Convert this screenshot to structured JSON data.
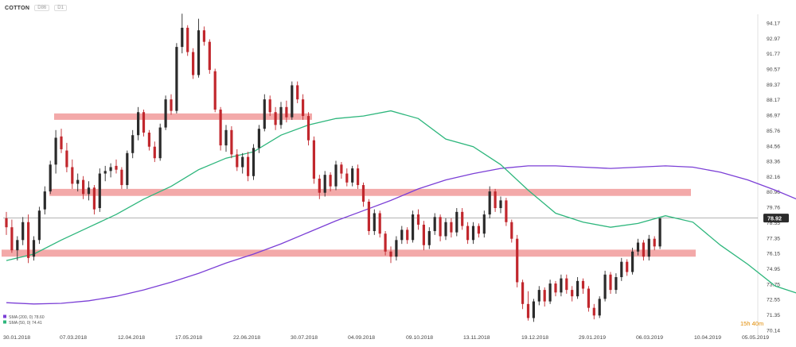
{
  "header": {
    "symbol": "COTTON",
    "tag": "D86",
    "timeframe": "D1"
  },
  "timer": "15h 40m",
  "legend": [
    {
      "text": "SMA (200, 0) 78.60",
      "color": "#7b3fd6"
    },
    {
      "text": "SMA (50, 0) 74.41",
      "color": "#2db67c"
    }
  ],
  "colors": {
    "up": "#2b2b2b",
    "down": "#c1272d",
    "sma200": "#7b3fd6",
    "sma50": "#2db67c",
    "zone": "#f19a9a",
    "price_tag_bg": "#2b2b2b",
    "timer": "#e08a00"
  },
  "chart_data": {
    "type": "candlestick",
    "symbol": "COTTON",
    "timeframe": "D1",
    "last_price": "78.92",
    "y_ticks": [
      "94.17",
      "92.97",
      "91.77",
      "90.57",
      "89.37",
      "88.17",
      "86.97",
      "85.76",
      "84.56",
      "83.36",
      "82.16",
      "80.96",
      "79.76",
      "78.55",
      "77.35",
      "76.15",
      "74.95",
      "73.75",
      "72.55",
      "71.35",
      "70.14"
    ],
    "x_ticks": [
      "30.01.2018",
      "07.03.2018",
      "12.04.2018",
      "17.05.2018",
      "22.06.2018",
      "30.07.2018",
      "04.09.2018",
      "09.10.2018",
      "13.11.2018",
      "19.12.2018",
      "29.01.2019",
      "06.03.2019",
      "10.04.2019",
      "05.05.2019"
    ],
    "ylim": [
      70.14,
      94.17
    ],
    "resistance_zones": [
      {
        "low": 86.6,
        "high": 87.1
      },
      {
        "low": 80.65,
        "high": 81.2
      },
      {
        "low": 75.9,
        "high": 76.45
      }
    ],
    "sma200": [
      [
        0,
        72.3
      ],
      [
        5,
        72.2
      ],
      [
        10,
        72.25
      ],
      [
        15,
        72.45
      ],
      [
        20,
        72.8
      ],
      [
        25,
        73.3
      ],
      [
        30,
        73.9
      ],
      [
        35,
        74.6
      ],
      [
        40,
        75.4
      ],
      [
        45,
        76.1
      ],
      [
        50,
        76.9
      ],
      [
        55,
        77.8
      ],
      [
        60,
        78.7
      ],
      [
        65,
        79.5
      ],
      [
        70,
        80.3
      ],
      [
        75,
        81.2
      ],
      [
        80,
        81.9
      ],
      [
        85,
        82.4
      ],
      [
        90,
        82.8
      ],
      [
        95,
        83.0
      ],
      [
        100,
        83.0
      ],
      [
        105,
        82.9
      ],
      [
        110,
        82.8
      ],
      [
        115,
        82.9
      ],
      [
        120,
        83.0
      ],
      [
        125,
        82.9
      ],
      [
        130,
        82.5
      ],
      [
        135,
        81.9
      ],
      [
        140,
        81.1
      ],
      [
        145,
        80.2
      ],
      [
        150,
        79.2
      ],
      [
        154,
        78.6
      ]
    ],
    "sma50": [
      [
        0,
        75.6
      ],
      [
        5,
        76.1
      ],
      [
        10,
        77.2
      ],
      [
        15,
        78.2
      ],
      [
        20,
        79.2
      ],
      [
        25,
        80.4
      ],
      [
        30,
        81.4
      ],
      [
        35,
        82.7
      ],
      [
        40,
        83.6
      ],
      [
        45,
        84.1
      ],
      [
        50,
        85.4
      ],
      [
        55,
        86.2
      ],
      [
        60,
        86.7
      ],
      [
        65,
        86.9
      ],
      [
        70,
        87.3
      ],
      [
        75,
        86.7
      ],
      [
        80,
        85.1
      ],
      [
        85,
        84.5
      ],
      [
        90,
        83.1
      ],
      [
        95,
        81.1
      ],
      [
        100,
        79.3
      ],
      [
        105,
        78.6
      ],
      [
        110,
        78.2
      ],
      [
        115,
        78.5
      ],
      [
        120,
        79.1
      ],
      [
        125,
        78.6
      ],
      [
        130,
        76.8
      ],
      [
        135,
        75.3
      ],
      [
        140,
        73.6
      ],
      [
        145,
        72.9
      ],
      [
        150,
        73.8
      ],
      [
        154,
        74.4
      ]
    ],
    "candles": [
      [
        78.9,
        79.4,
        77.6,
        78.2
      ],
      [
        78.2,
        78.8,
        76.2,
        76.4
      ],
      [
        76.4,
        77.5,
        75.6,
        77.2
      ],
      [
        77.2,
        79.0,
        76.8,
        78.6
      ],
      [
        78.6,
        79.2,
        75.4,
        75.8
      ],
      [
        75.9,
        77.5,
        75.6,
        77.2
      ],
      [
        77.2,
        79.8,
        76.9,
        79.5
      ],
      [
        79.6,
        81.4,
        79.2,
        81.0
      ],
      [
        81.0,
        83.4,
        80.8,
        83.1
      ],
      [
        83.1,
        85.8,
        82.4,
        85.2
      ],
      [
        85.3,
        85.9,
        84.0,
        84.3
      ],
      [
        84.2,
        84.8,
        82.5,
        82.9
      ],
      [
        82.9,
        83.5,
        81.2,
        81.6
      ],
      [
        81.6,
        82.4,
        81.0,
        81.9
      ],
      [
        81.9,
        82.2,
        80.4,
        80.8
      ],
      [
        80.8,
        81.8,
        80.3,
        81.3
      ],
      [
        81.3,
        81.5,
        79.2,
        79.6
      ],
      [
        79.7,
        82.8,
        79.4,
        82.4
      ],
      [
        82.4,
        83.0,
        81.8,
        82.6
      ],
      [
        82.6,
        83.2,
        82.1,
        82.9
      ],
      [
        83.0,
        83.5,
        82.4,
        82.7
      ],
      [
        82.7,
        82.9,
        81.2,
        81.5
      ],
      [
        81.5,
        84.2,
        81.2,
        84.0
      ],
      [
        84.0,
        85.8,
        83.6,
        85.4
      ],
      [
        85.4,
        87.6,
        85.0,
        87.2
      ],
      [
        87.2,
        87.4,
        85.3,
        85.6
      ],
      [
        85.6,
        85.8,
        84.2,
        84.5
      ],
      [
        84.5,
        84.9,
        83.3,
        83.6
      ],
      [
        83.6,
        86.3,
        83.4,
        86.0
      ],
      [
        86.0,
        88.5,
        85.8,
        88.2
      ],
      [
        88.2,
        88.6,
        87.0,
        87.3
      ],
      [
        87.3,
        92.6,
        87.1,
        92.3
      ],
      [
        92.3,
        94.9,
        91.8,
        93.8
      ],
      [
        93.8,
        94.0,
        91.6,
        91.9
      ],
      [
        91.9,
        92.2,
        89.8,
        90.1
      ],
      [
        90.1,
        94.5,
        89.9,
        93.6
      ],
      [
        93.6,
        93.9,
        92.4,
        92.7
      ],
      [
        92.7,
        92.9,
        90.2,
        90.5
      ],
      [
        90.4,
        90.6,
        87.2,
        87.4
      ],
      [
        87.4,
        87.6,
        84.2,
        84.6
      ],
      [
        84.6,
        86.2,
        84.1,
        85.8
      ],
      [
        85.8,
        86.1,
        83.6,
        83.9
      ],
      [
        83.9,
        84.3,
        82.6,
        82.9
      ],
      [
        82.9,
        84.0,
        82.4,
        83.7
      ],
      [
        83.7,
        84.1,
        81.8,
        82.2
      ],
      [
        82.2,
        84.7,
        81.9,
        84.4
      ],
      [
        84.4,
        86.2,
        84.0,
        85.9
      ],
      [
        85.9,
        88.6,
        85.7,
        88.2
      ],
      [
        88.2,
        88.5,
        86.9,
        87.2
      ],
      [
        87.2,
        87.6,
        85.8,
        86.2
      ],
      [
        86.2,
        88.0,
        85.9,
        87.6
      ],
      [
        87.6,
        88.1,
        86.4,
        86.8
      ],
      [
        86.8,
        89.6,
        86.6,
        89.3
      ],
      [
        89.3,
        89.6,
        87.9,
        88.2
      ],
      [
        88.2,
        88.6,
        86.6,
        86.9
      ],
      [
        86.9,
        87.2,
        84.6,
        85.0
      ],
      [
        85.0,
        85.3,
        81.6,
        82.0
      ],
      [
        82.0,
        82.3,
        80.4,
        80.9
      ],
      [
        80.9,
        82.6,
        80.6,
        82.3
      ],
      [
        82.3,
        82.5,
        81.0,
        81.4
      ],
      [
        81.4,
        83.4,
        81.1,
        83.1
      ],
      [
        83.1,
        83.3,
        82.0,
        82.4
      ],
      [
        82.4,
        82.8,
        81.4,
        81.7
      ],
      [
        81.7,
        83.0,
        81.4,
        82.8
      ],
      [
        82.8,
        83.1,
        81.2,
        81.5
      ],
      [
        81.5,
        81.7,
        79.8,
        80.2
      ],
      [
        80.2,
        80.4,
        77.6,
        77.9
      ],
      [
        77.9,
        79.6,
        77.6,
        79.3
      ],
      [
        79.3,
        79.5,
        77.4,
        77.7
      ],
      [
        77.7,
        77.9,
        76.0,
        76.3
      ],
      [
        76.3,
        76.7,
        75.4,
        75.9
      ],
      [
        75.9,
        77.5,
        75.6,
        77.2
      ],
      [
        77.2,
        78.3,
        76.9,
        78.0
      ],
      [
        78.0,
        78.2,
        76.9,
        77.2
      ],
      [
        77.2,
        79.5,
        77.0,
        79.2
      ],
      [
        79.2,
        79.6,
        78.0,
        78.4
      ],
      [
        78.4,
        78.7,
        76.4,
        76.8
      ],
      [
        76.8,
        78.2,
        76.5,
        77.9
      ],
      [
        77.9,
        79.3,
        77.6,
        79.0
      ],
      [
        79.0,
        79.2,
        77.1,
        77.5
      ],
      [
        77.5,
        78.9,
        77.2,
        78.6
      ],
      [
        78.6,
        78.9,
        77.4,
        77.8
      ],
      [
        77.8,
        79.7,
        77.5,
        79.4
      ],
      [
        79.4,
        79.7,
        78.0,
        78.3
      ],
      [
        78.3,
        78.6,
        76.9,
        77.2
      ],
      [
        77.2,
        78.6,
        76.9,
        78.3
      ],
      [
        78.3,
        78.5,
        77.4,
        77.7
      ],
      [
        77.7,
        79.5,
        77.4,
        79.2
      ],
      [
        79.2,
        81.4,
        78.9,
        81.0
      ],
      [
        81.0,
        81.2,
        79.4,
        79.7
      ],
      [
        79.7,
        80.6,
        79.3,
        80.3
      ],
      [
        80.3,
        80.5,
        78.3,
        78.6
      ],
      [
        78.6,
        78.8,
        77.0,
        77.3
      ],
      [
        77.3,
        77.6,
        73.5,
        73.9
      ],
      [
        73.9,
        74.1,
        71.8,
        72.2
      ],
      [
        72.2,
        73.2,
        70.9,
        71.1
      ],
      [
        71.1,
        72.6,
        70.8,
        72.4
      ],
      [
        72.4,
        73.6,
        72.1,
        73.3
      ],
      [
        73.3,
        73.5,
        72.0,
        72.4
      ],
      [
        72.4,
        74.1,
        72.2,
        73.8
      ],
      [
        73.8,
        74.0,
        72.8,
        73.1
      ],
      [
        73.1,
        74.5,
        72.8,
        74.2
      ],
      [
        74.2,
        74.5,
        73.0,
        73.3
      ],
      [
        73.3,
        73.6,
        72.4,
        72.8
      ],
      [
        72.8,
        74.3,
        72.6,
        74.0
      ],
      [
        74.0,
        74.2,
        73.0,
        73.4
      ],
      [
        73.4,
        73.6,
        71.6,
        71.9
      ],
      [
        71.9,
        72.2,
        71.0,
        71.3
      ],
      [
        71.3,
        72.8,
        71.1,
        72.6
      ],
      [
        72.6,
        74.8,
        72.4,
        74.5
      ],
      [
        74.5,
        74.7,
        73.0,
        73.3
      ],
      [
        73.3,
        74.6,
        73.0,
        74.3
      ],
      [
        74.3,
        75.8,
        74.0,
        75.5
      ],
      [
        75.5,
        75.7,
        74.4,
        74.7
      ],
      [
        74.7,
        76.6,
        74.5,
        76.3
      ],
      [
        76.3,
        77.3,
        76.0,
        77.0
      ],
      [
        77.0,
        77.2,
        75.6,
        75.9
      ],
      [
        75.9,
        77.6,
        75.6,
        77.3
      ],
      [
        77.3,
        77.5,
        76.4,
        76.7
      ],
      [
        76.7,
        78.9,
        76.5,
        78.9
      ]
    ]
  }
}
